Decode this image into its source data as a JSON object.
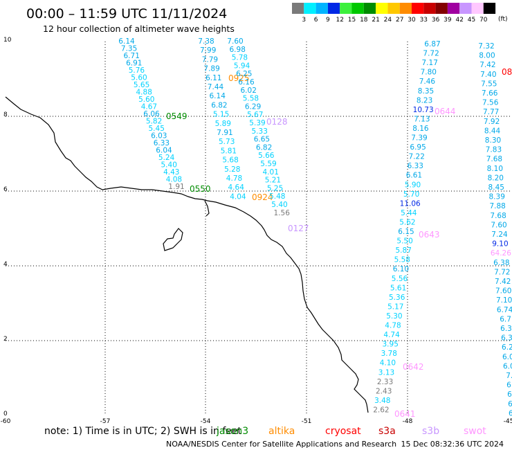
{
  "header": {
    "time_range": "00:00 – 11:59 UTC 11/11/2024",
    "subtitle": "12 hour collection of altimeter wave heights"
  },
  "scale": {
    "unit": "(ft)",
    "bins": [
      {
        "label": "3",
        "color": "#7a7a7a"
      },
      {
        "label": "6",
        "color": "#00f0ff"
      },
      {
        "label": "9",
        "color": "#00b4ff"
      },
      {
        "label": "12",
        "color": "#0028e6"
      },
      {
        "label": "15",
        "color": "#3cf03c"
      },
      {
        "label": "18",
        "color": "#00c800"
      },
      {
        "label": "21",
        "color": "#008c00"
      },
      {
        "label": "24",
        "color": "#ffff00"
      },
      {
        "label": "27",
        "color": "#ffc800"
      },
      {
        "label": "30",
        "color": "#ff8c00"
      },
      {
        "label": "33",
        "color": "#ff0000"
      },
      {
        "label": "36",
        "color": "#c80000"
      },
      {
        "label": "39",
        "color": "#820000"
      },
      {
        "label": "42",
        "color": "#a000a0"
      },
      {
        "label": "45",
        "color": "#c896ff"
      },
      {
        "label": "70",
        "color": "#ffc8ff"
      },
      {
        "label": "",
        "color": "#000000"
      }
    ]
  },
  "axes": {
    "x_ticks": [
      "-60",
      "-57",
      "-54",
      "-51",
      "-48",
      "-45"
    ],
    "y_ticks": [
      "0",
      "2",
      "4",
      "6",
      "8",
      "10"
    ]
  },
  "tracks": [
    {
      "label": "0549",
      "color": "#008c00",
      "values": [
        "6.14",
        "7.35",
        "6.71",
        "6.91",
        "5.76",
        "5.60",
        "5.65",
        "4.88",
        "5.60",
        "4.67",
        "6.06",
        "5.82",
        "5.45",
        "6.03",
        "6.33",
        "6.04",
        "5.24",
        "5.40",
        "4.43",
        "4.08",
        "1.91"
      ]
    },
    {
      "label": "0550",
      "color": "#008c00",
      "values": []
    },
    {
      "label": "0925",
      "color": "#ff8c00",
      "values": [
        "7.38",
        "7.99",
        "7.79",
        "7.89",
        "6.11",
        "7.44",
        "6.14",
        "6.82",
        "5.15",
        "5.89",
        "7.91",
        "5.73",
        "5.81",
        "5.68",
        "5.28",
        "4.78",
        "4.64",
        "4.04"
      ]
    },
    {
      "label": "0128",
      "color": "#c896ff",
      "values": [
        "7.60",
        "6.98",
        "5.78",
        "5.94",
        "6.25",
        "6.16",
        "6.02",
        "5.58",
        "6.29",
        "5.67",
        "5.39",
        "5.33",
        "6.65",
        "6.82",
        "5.66",
        "5.59",
        "4.01",
        "5.21",
        "5.25",
        "5.48",
        "5.40",
        "1.56"
      ]
    },
    {
      "label": "0924",
      "color": "#ff8c00",
      "values": []
    },
    {
      "label": "0127",
      "color": "#c896ff",
      "values": []
    },
    {
      "label": "0644",
      "color": "#ff96ff",
      "values": [
        "6.87",
        "7.72",
        "7.17",
        "7.80",
        "7.46",
        "8.35",
        "8.23",
        "10.73",
        "7.13",
        "8.16",
        "7.39",
        "6.95",
        "7.22",
        "6.33",
        "6.61",
        "5.90",
        "5.70",
        "11.06",
        "5.44",
        "5.62",
        "6.15",
        "5.50",
        "5.87",
        "5.58",
        "6.10",
        "5.56",
        "5.61",
        "5.36",
        "5.17",
        "5.30",
        "4.78",
        "4.74",
        "3.95",
        "3.78",
        "4.10",
        "3.13",
        "2.33",
        "2.43",
        "3.48",
        "2.62"
      ]
    },
    {
      "label": "0643",
      "color": "#ff96ff",
      "values": []
    },
    {
      "label": "0642",
      "color": "#ff96ff",
      "values": []
    },
    {
      "label": "0641",
      "color": "#ff96ff",
      "values": []
    },
    {
      "label": "08",
      "color": "#ff0000",
      "values": [
        "7.32",
        "8.00",
        "7.42",
        "7.40",
        "7.55",
        "7.66",
        "7.56",
        "7.77",
        "7.92",
        "8.44",
        "8.30",
        "7.83",
        "7.68",
        "8.10",
        "8.20",
        "8.45",
        "8.39",
        "7.88",
        "7.68",
        "7.60",
        "7.24",
        "9.10",
        "64.26",
        "6.38",
        "7.72",
        "7.42",
        "7.60",
        "7.10",
        "6.74",
        "6.7",
        "6.3",
        "6.3",
        "6.2",
        "6.0",
        "6.0",
        "7.",
        "6.",
        "6.",
        "6.",
        "6."
      ]
    }
  ],
  "footer": {
    "note": "note:  1) Time is in UTC;  2) SWH is in feet",
    "legend": [
      {
        "name": "jason3",
        "color": "#008c00"
      },
      {
        "name": "altika",
        "color": "#ff8c00"
      },
      {
        "name": "cryosat",
        "color": "#ff0000"
      },
      {
        "name": "s3a",
        "color": "#c80000"
      },
      {
        "name": "s3b",
        "color": "#c896ff"
      },
      {
        "name": "swot",
        "color": "#ff96ff"
      }
    ],
    "credit": "NOAA/NESDIS Center for Satellite Applications and Research",
    "timestamp": "15 Dec 08:32:36 UTC 2024"
  },
  "map": {
    "coastline_color": "#000000",
    "grid_color": "#000000"
  }
}
